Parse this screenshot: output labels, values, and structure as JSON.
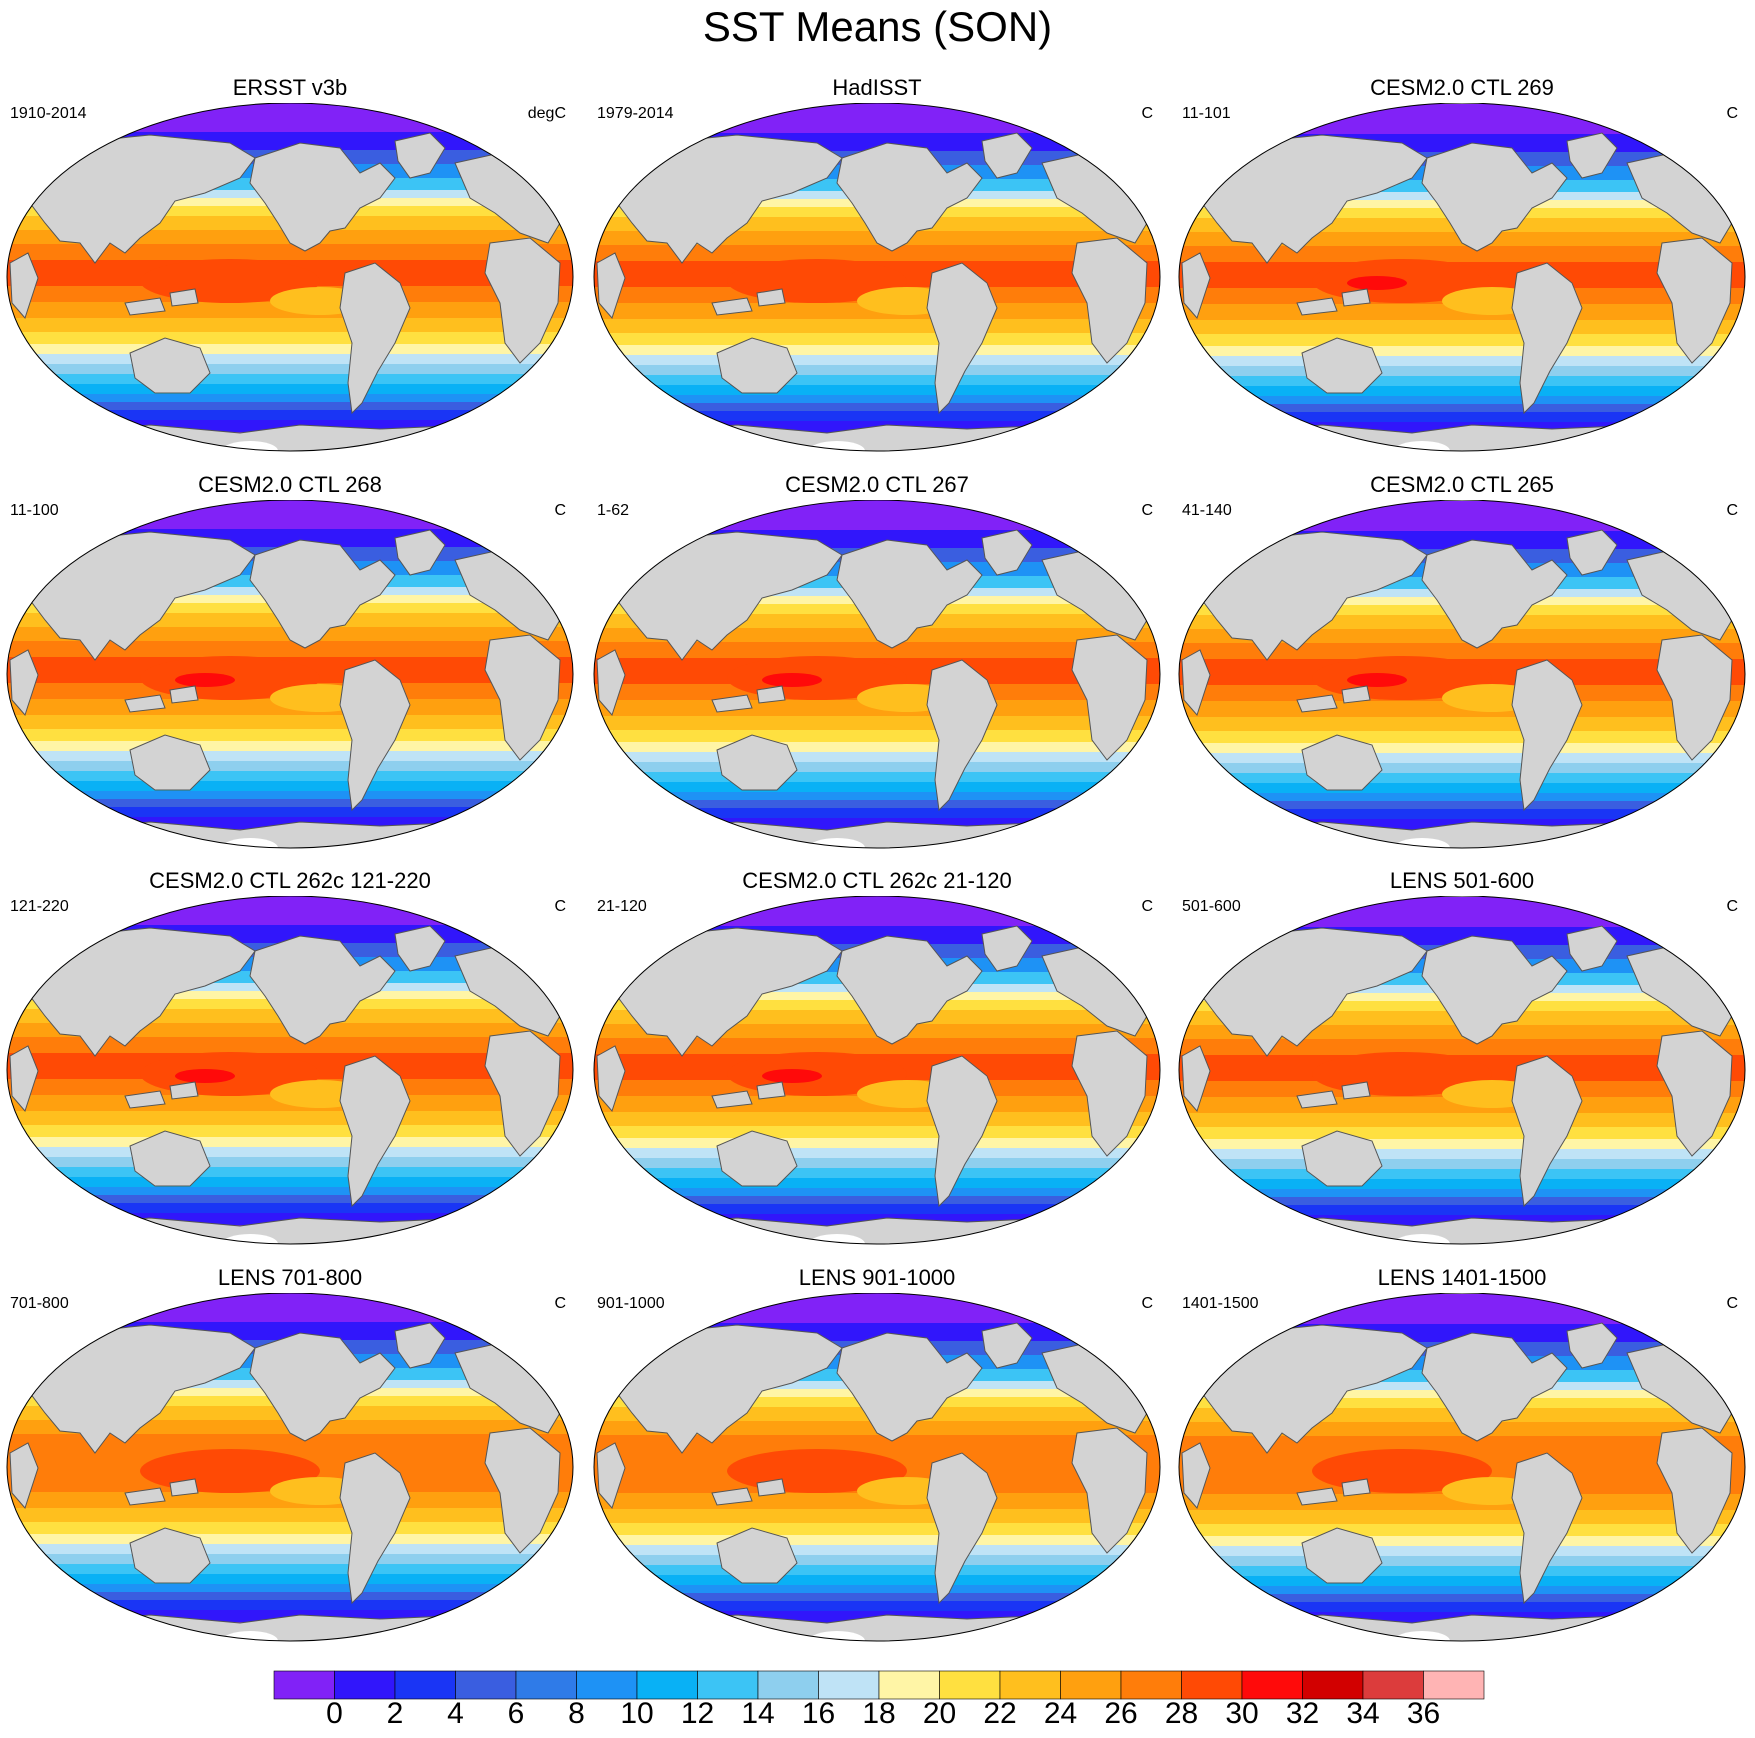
{
  "title": "SST Means (SON)",
  "panels": [
    {
      "title": "ERSST v3b",
      "period": "1910-2014",
      "units": "degC"
    },
    {
      "title": "HadISST",
      "period": "1979-2014",
      "units": "C"
    },
    {
      "title": "CESM2.0 CTL 269",
      "period": "11-101",
      "units": "C"
    },
    {
      "title": "CESM2.0 CTL 268",
      "period": "11-100",
      "units": "C"
    },
    {
      "title": "CESM2.0 CTL 267",
      "period": "1-62",
      "units": "C"
    },
    {
      "title": "CESM2.0 CTL 265",
      "period": "41-140",
      "units": "C"
    },
    {
      "title": "CESM2.0 CTL 262c 121-220",
      "period": "121-220",
      "units": "C"
    },
    {
      "title": "CESM2.0 CTL 262c 21-120",
      "period": "21-120",
      "units": "C"
    },
    {
      "title": "LENS 501-600",
      "period": "501-600",
      "units": "C"
    },
    {
      "title": "LENS 701-800",
      "period": "701-800",
      "units": "C"
    },
    {
      "title": "LENS 901-1000",
      "period": "901-1000",
      "units": "C"
    },
    {
      "title": "LENS 1401-1500",
      "period": "1401-1500",
      "units": "C"
    }
  ],
  "colorbar": {
    "labels": [
      "0",
      "2",
      "4",
      "6",
      "8",
      "10",
      "12",
      "14",
      "16",
      "18",
      "20",
      "22",
      "24",
      "26",
      "28",
      "30",
      "32",
      "34",
      "36"
    ],
    "colors": [
      "#8122f7",
      "#3116fb",
      "#1a35f5",
      "#3a5ee0",
      "#2f7be8",
      "#1e92f5",
      "#09b1f5",
      "#3cc4f5",
      "#8ecfee",
      "#bfe3f6",
      "#fff5a6",
      "#ffe040",
      "#ffbf1e",
      "#ffa00f",
      "#ff7d0a",
      "#ff4a05",
      "#ff0a0a",
      "#d20000",
      "#dc3c3c",
      "#ffb4b4"
    ]
  },
  "map_style": {
    "land_color": "#d3d3d3",
    "coast_color": "#555555",
    "antarctic_ice_color": "#ffffff"
  }
}
